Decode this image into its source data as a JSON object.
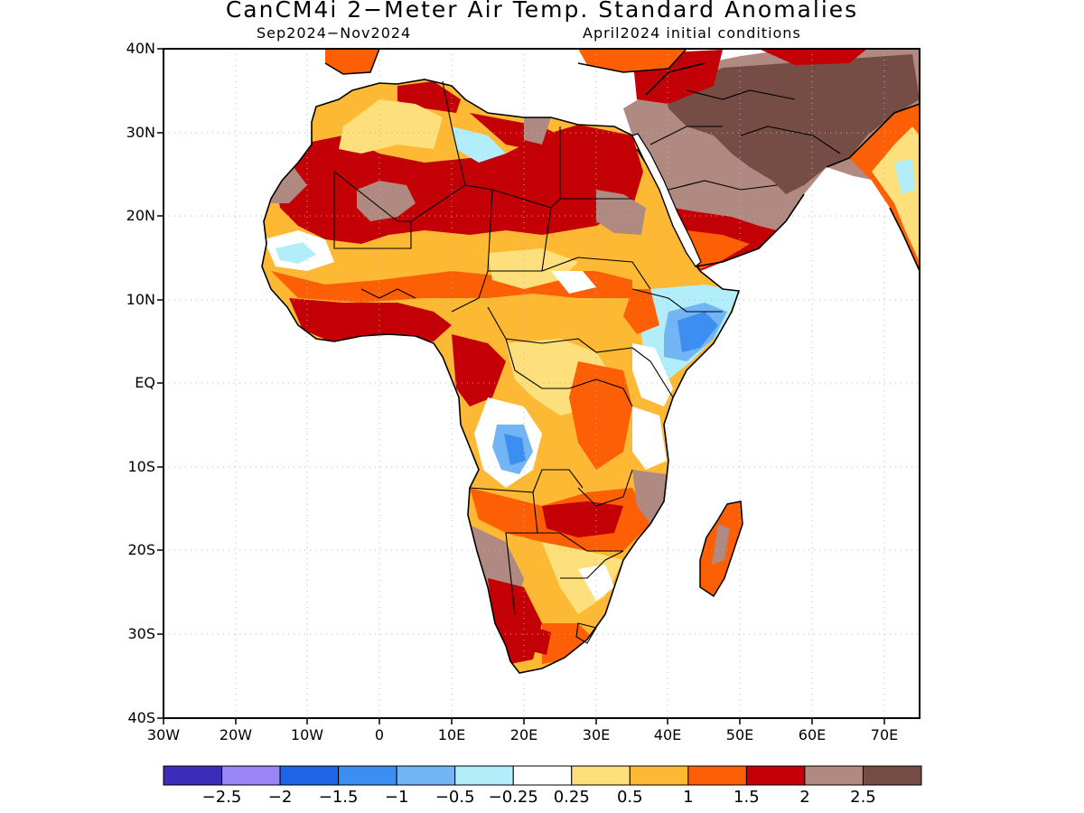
{
  "header": {
    "title": "CanCM4i 2−Meter Air Temp. Standard Anomalies",
    "period": "Sep2024−Nov2024",
    "init": "April2024 initial conditions"
  },
  "axes": {
    "lat_labels": [
      "40N",
      "30N",
      "20N",
      "10N",
      "EQ",
      "10S",
      "20S",
      "30S",
      "40S"
    ],
    "lon_labels": [
      "30W",
      "20W",
      "10W",
      "0",
      "10E",
      "20E",
      "30E",
      "40E",
      "50E",
      "60E",
      "70E"
    ]
  },
  "colorbar": {
    "colors": [
      "#3b2db5",
      "#9a85f5",
      "#1f64e6",
      "#3c8ef0",
      "#73b4f5",
      "#b1eef9",
      "#ffffff",
      "#fde07b",
      "#fdb934",
      "#fc5f05",
      "#c20005",
      "#b08a80",
      "#754d45"
    ],
    "labels": [
      "−2.5",
      "−2",
      "−1.5",
      "−1",
      "−0.5",
      "−0.25",
      "0.25",
      "0.5",
      "1",
      "1.5",
      "2",
      "2.5"
    ]
  },
  "colors": {
    "land": "#fdb934",
    "frame": "#000000",
    "grid": "#b4b4b4"
  }
}
